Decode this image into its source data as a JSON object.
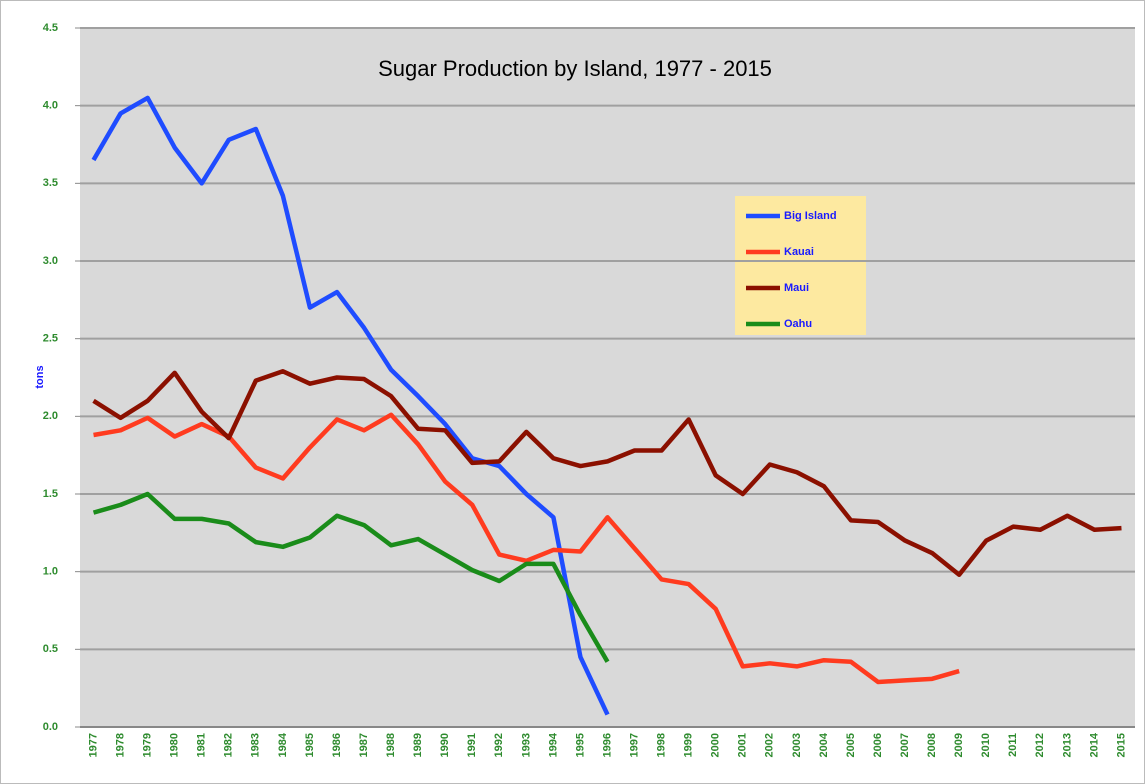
{
  "chart_data": {
    "type": "line",
    "title": "Sugar Production by Island, 1977 - 2015",
    "y_label": "tons",
    "categories": [
      "1977",
      "1978",
      "1979",
      "1980",
      "1981",
      "1982",
      "1983",
      "1984",
      "1985",
      "1986",
      "1987",
      "1988",
      "1989",
      "1990",
      "1991",
      "1992",
      "1993",
      "1994",
      "1995",
      "1996",
      "1997",
      "1998",
      "1999",
      "2000",
      "2001",
      "2002",
      "2003",
      "2004",
      "2005",
      "2006",
      "2007",
      "2008",
      "2009",
      "2010",
      "2011",
      "2012",
      "2013",
      "2014",
      "2015"
    ],
    "series": [
      {
        "name": "Big Island",
        "color": "#1f4cff",
        "values": [
          3.65,
          3.95,
          4.05,
          3.73,
          3.5,
          3.78,
          3.85,
          3.42,
          2.7,
          2.8,
          2.57,
          2.3,
          2.13,
          1.95,
          1.73,
          1.68,
          1.5,
          1.35,
          0.45,
          0.08,
          null,
          null,
          null,
          null,
          null,
          null,
          null,
          null,
          null,
          null,
          null,
          null,
          null,
          null,
          null,
          null,
          null,
          null,
          null
        ]
      },
      {
        "name": "Kauai",
        "color": "#ff3b1f",
        "values": [
          1.88,
          1.91,
          1.99,
          1.87,
          1.95,
          1.87,
          1.67,
          1.6,
          1.8,
          1.98,
          1.91,
          2.01,
          1.82,
          1.58,
          1.43,
          1.11,
          1.07,
          1.14,
          1.13,
          1.35,
          1.15,
          0.95,
          0.92,
          0.76,
          0.39,
          0.41,
          0.39,
          0.43,
          0.42,
          0.29,
          0.3,
          0.31,
          0.36,
          null,
          null,
          null,
          null,
          null,
          null
        ]
      },
      {
        "name": "Maui",
        "color": "#8b1000",
        "values": [
          2.1,
          1.99,
          2.1,
          2.28,
          2.03,
          1.86,
          2.23,
          2.29,
          2.21,
          2.25,
          2.24,
          2.13,
          1.92,
          1.91,
          1.7,
          1.71,
          1.9,
          1.73,
          1.68,
          1.71,
          1.78,
          1.78,
          1.98,
          1.62,
          1.5,
          1.69,
          1.64,
          1.55,
          1.33,
          1.32,
          1.2,
          1.12,
          0.98,
          1.2,
          1.29,
          1.27,
          1.36,
          1.27,
          1.28
        ]
      },
      {
        "name": "Oahu",
        "color": "#1a8c1a",
        "values": [
          1.38,
          1.43,
          1.5,
          1.34,
          1.34,
          1.31,
          1.19,
          1.16,
          1.22,
          1.36,
          1.3,
          1.17,
          1.21,
          1.11,
          1.01,
          0.94,
          1.05,
          1.05,
          0.72,
          0.42,
          null,
          null,
          null,
          null,
          null,
          null,
          null,
          null,
          null,
          null,
          null,
          null,
          null,
          null,
          null,
          null,
          null,
          null,
          null
        ]
      }
    ],
    "ylim": [
      0,
      4.5
    ],
    "yticks": [
      {
        "value": 0,
        "label": "0.0"
      },
      {
        "value": 0.5,
        "label": "0.5"
      },
      {
        "value": 1,
        "label": "1.0"
      },
      {
        "value": 1.5,
        "label": "1.5"
      },
      {
        "value": 2,
        "label": "2.0"
      },
      {
        "value": 2.5,
        "label": "2.5"
      },
      {
        "value": 3,
        "label": "3.0"
      },
      {
        "value": 3.5,
        "label": "3.5"
      },
      {
        "value": 4,
        "label": "4.0"
      },
      {
        "value": 4.5,
        "label": "4.5"
      }
    ],
    "grid": true
  }
}
